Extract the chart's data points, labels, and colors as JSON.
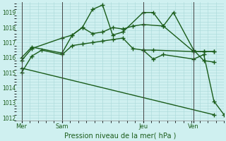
{
  "background_color": "#cff0f0",
  "grid_color": "#a8d8d8",
  "line_color": "#1a5c1a",
  "xlabel": "Pression niveau de la mer( hPa )",
  "ylim": [
    1011.8,
    1019.7
  ],
  "yticks": [
    1012,
    1013,
    1014,
    1015,
    1016,
    1017,
    1018,
    1019
  ],
  "xtick_labels": [
    "Mer",
    "Sam",
    "Jeu",
    "Ven"
  ],
  "xtick_positions": [
    0,
    4,
    12,
    17
  ],
  "xlim": [
    -0.5,
    20
  ],
  "vlines": [
    0,
    4,
    12,
    17
  ],
  "series": [
    {
      "x": [
        0,
        1,
        4,
        5,
        6,
        7,
        8,
        9,
        10,
        12,
        13,
        14,
        15,
        17,
        18,
        19
      ],
      "y": [
        1016.0,
        1016.7,
        1016.3,
        1017.5,
        1018.0,
        1019.2,
        1019.5,
        1017.5,
        1017.7,
        1019.0,
        1019.0,
        1018.1,
        1019.0,
        1016.5,
        1015.8,
        1015.7
      ],
      "marker": "+",
      "markersize": 4,
      "linewidth": 1.0
    },
    {
      "x": [
        0,
        1,
        4,
        5,
        6,
        7,
        8,
        9,
        10,
        11,
        12,
        14,
        17,
        18,
        19
      ],
      "y": [
        1015.8,
        1016.6,
        1017.3,
        1017.5,
        1018.0,
        1017.6,
        1017.7,
        1018.0,
        1017.9,
        1018.1,
        1018.2,
        1018.1,
        1016.4,
        1016.4,
        1016.4
      ],
      "marker": "+",
      "markersize": 4,
      "linewidth": 1.0
    },
    {
      "x": [
        0,
        1,
        2,
        4,
        5,
        6,
        7,
        8,
        9,
        10,
        11,
        12,
        13,
        17,
        18,
        19
      ],
      "y": [
        1015.0,
        1016.1,
        1016.5,
        1016.2,
        1016.8,
        1016.9,
        1017.0,
        1017.1,
        1017.2,
        1017.3,
        1016.6,
        1016.5,
        1016.5,
        1016.4,
        1016.4,
        1016.4
      ],
      "marker": "+",
      "markersize": 4,
      "linewidth": 1.0
    },
    {
      "x": [
        0,
        19
      ],
      "y": [
        1015.3,
        1012.2
      ],
      "marker": "+",
      "markersize": 4,
      "linewidth": 1.0
    },
    {
      "x": [
        12,
        13,
        14,
        17,
        18,
        19,
        20
      ],
      "y": [
        1016.5,
        1015.9,
        1016.2,
        1015.9,
        1016.2,
        1013.1,
        1012.2
      ],
      "marker": "+",
      "markersize": 4,
      "linewidth": 1.0
    }
  ],
  "figsize": [
    3.2,
    2.0
  ],
  "dpi": 100
}
